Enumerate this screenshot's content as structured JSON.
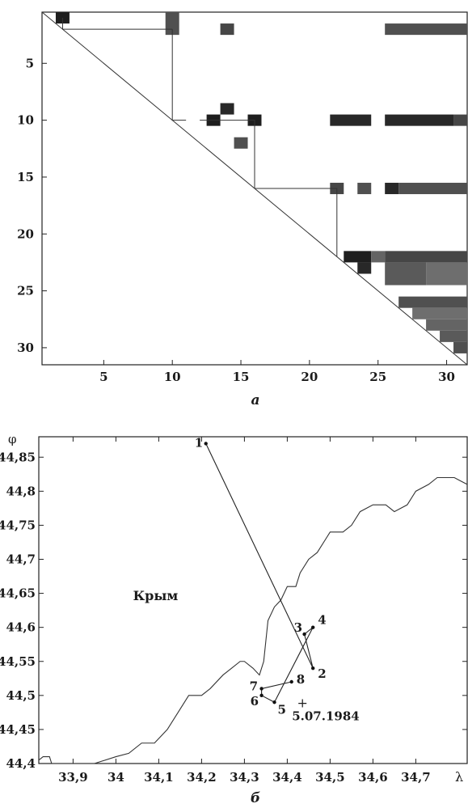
{
  "chart_data": [
    {
      "type": "heatmap",
      "caption": "а",
      "x_ticks": [
        "5",
        "10",
        "15",
        "20",
        "25",
        "30"
      ],
      "y_ticks": [
        "5",
        "10",
        "15",
        "20",
        "25",
        "30"
      ],
      "x_tick_values": [
        5,
        10,
        15,
        20,
        25,
        30
      ],
      "y_tick_values": [
        5,
        10,
        15,
        20,
        25,
        30
      ],
      "xlim": [
        0.5,
        31.5
      ],
      "ylim": [
        0.5,
        31.5
      ],
      "cells": [
        {
          "x0": 1.5,
          "x1": 2.5,
          "y0": 0.5,
          "y1": 1.5,
          "value": 0.95
        },
        {
          "x0": 9.5,
          "x1": 10.5,
          "y0": 0.5,
          "y1": 2.5,
          "value": 0.7
        },
        {
          "x0": 13.5,
          "x1": 14.5,
          "y0": 1.5,
          "y1": 2.5,
          "value": 0.75
        },
        {
          "x0": 25.5,
          "x1": 31.5,
          "y0": 1.5,
          "y1": 2.5,
          "value": 0.7
        },
        {
          "x0": 13.5,
          "x1": 14.5,
          "y0": 8.5,
          "y1": 9.5,
          "value": 0.9
        },
        {
          "x0": 12.5,
          "x1": 13.5,
          "y0": 9.5,
          "y1": 10.5,
          "value": 0.95
        },
        {
          "x0": 15.5,
          "x1": 16.5,
          "y0": 9.5,
          "y1": 10.5,
          "value": 0.95
        },
        {
          "x0": 21.5,
          "x1": 24.5,
          "y0": 9.5,
          "y1": 10.5,
          "value": 0.9
        },
        {
          "x0": 25.5,
          "x1": 30.5,
          "y0": 9.5,
          "y1": 10.5,
          "value": 0.9
        },
        {
          "x0": 30.5,
          "x1": 31.5,
          "y0": 9.5,
          "y1": 10.5,
          "value": 0.75
        },
        {
          "x0": 14.5,
          "x1": 15.5,
          "y0": 11.5,
          "y1": 12.5,
          "value": 0.7
        },
        {
          "x0": 21.5,
          "x1": 22.5,
          "y0": 15.5,
          "y1": 16.5,
          "value": 0.75
        },
        {
          "x0": 23.5,
          "x1": 24.5,
          "y0": 15.5,
          "y1": 16.5,
          "value": 0.7
        },
        {
          "x0": 25.5,
          "x1": 26.5,
          "y0": 15.5,
          "y1": 16.5,
          "value": 0.9
        },
        {
          "x0": 26.5,
          "x1": 31.5,
          "y0": 15.5,
          "y1": 16.5,
          "value": 0.7
        },
        {
          "x0": 22.5,
          "x1": 24.5,
          "y0": 21.5,
          "y1": 22.5,
          "value": 0.95
        },
        {
          "x0": 23.5,
          "x1": 24.5,
          "y0": 22.5,
          "y1": 23.5,
          "value": 0.9
        },
        {
          "x0": 24.5,
          "x1": 25.5,
          "y0": 21.5,
          "y1": 22.5,
          "value": 0.6
        },
        {
          "x0": 25.5,
          "x1": 31.5,
          "y0": 21.5,
          "y1": 22.5,
          "value": 0.75
        },
        {
          "x0": 25.5,
          "x1": 28.5,
          "y0": 22.5,
          "y1": 24.5,
          "value": 0.65
        },
        {
          "x0": 28.5,
          "x1": 31.5,
          "y0": 22.5,
          "y1": 24.5,
          "value": 0.55
        },
        {
          "x0": 26.5,
          "x1": 31.5,
          "y0": 25.5,
          "y1": 26.5,
          "value": 0.7
        },
        {
          "x0": 27.5,
          "x1": 31.5,
          "y0": 26.5,
          "y1": 27.5,
          "value": 0.55
        },
        {
          "x0": 28.5,
          "x1": 31.5,
          "y0": 27.5,
          "y1": 28.5,
          "value": 0.6
        },
        {
          "x0": 29.5,
          "x1": 31.5,
          "y0": 28.5,
          "y1": 29.5,
          "value": 0.65
        },
        {
          "x0": 30.5,
          "x1": 31.5,
          "y0": 29.5,
          "y1": 30.5,
          "value": 0.7
        }
      ],
      "tree_lines": [
        [
          [
            2,
            1
          ],
          [
            2,
            2
          ],
          [
            10,
            2
          ]
        ],
        [
          [
            10,
            2
          ],
          [
            10,
            10
          ],
          [
            11,
            10
          ]
        ],
        [
          [
            12,
            10
          ],
          [
            16,
            10
          ],
          [
            16,
            16
          ]
        ],
        [
          [
            16,
            16
          ],
          [
            22,
            16
          ],
          [
            22,
            22
          ]
        ]
      ]
    },
    {
      "type": "line",
      "caption": "б",
      "xlabel": "λ",
      "ylabel": "φ",
      "x_ticks": [
        "33,9",
        "34",
        "34,1",
        "34,2",
        "34,3",
        "34,4",
        "34,5",
        "34,6",
        "34,7"
      ],
      "x_tick_values": [
        33.9,
        34.0,
        34.1,
        34.2,
        34.3,
        34.4,
        34.5,
        34.6,
        34.7
      ],
      "y_ticks": [
        "44,4",
        "44,45",
        "44,5",
        "44,55",
        "44,6",
        "44,65",
        "44,7",
        "44,75",
        "44,8",
        "44,85"
      ],
      "y_tick_values": [
        44.4,
        44.45,
        44.5,
        44.55,
        44.6,
        44.65,
        44.7,
        44.75,
        44.8,
        44.85
      ],
      "xlim": [
        33.82,
        34.82
      ],
      "ylim": [
        44.4,
        44.88
      ],
      "region_label": "Крым",
      "region_label_pos": {
        "x": 34.04,
        "y": 44.64
      },
      "coastline": [
        [
          33.82,
          44.405
        ],
        [
          33.83,
          44.41
        ],
        [
          33.845,
          44.41
        ],
        [
          33.85,
          44.4
        ],
        [
          33.95,
          44.4
        ],
        [
          34.0,
          44.41
        ],
        [
          34.03,
          44.415
        ],
        [
          34.06,
          44.43
        ],
        [
          34.09,
          44.43
        ],
        [
          34.12,
          44.45
        ],
        [
          34.15,
          44.48
        ],
        [
          34.17,
          44.5
        ],
        [
          34.2,
          44.5
        ],
        [
          34.22,
          44.51
        ],
        [
          34.25,
          44.53
        ],
        [
          34.27,
          44.54
        ],
        [
          34.29,
          44.55
        ],
        [
          34.3,
          44.55
        ],
        [
          34.32,
          44.54
        ],
        [
          34.335,
          44.53
        ],
        [
          34.345,
          44.55
        ],
        [
          34.35,
          44.58
        ],
        [
          34.355,
          44.61
        ],
        [
          34.37,
          44.63
        ],
        [
          34.385,
          44.64
        ],
        [
          34.4,
          44.66
        ],
        [
          34.42,
          44.66
        ],
        [
          34.43,
          44.68
        ],
        [
          34.45,
          44.7
        ],
        [
          34.47,
          44.71
        ],
        [
          34.49,
          44.73
        ],
        [
          34.5,
          44.74
        ],
        [
          34.53,
          44.74
        ],
        [
          34.55,
          44.75
        ],
        [
          34.57,
          44.77
        ],
        [
          34.6,
          44.78
        ],
        [
          34.63,
          44.78
        ],
        [
          34.65,
          44.77
        ],
        [
          34.68,
          44.78
        ],
        [
          34.7,
          44.8
        ],
        [
          34.73,
          44.81
        ],
        [
          34.75,
          44.82
        ],
        [
          34.77,
          44.82
        ],
        [
          34.79,
          44.82
        ],
        [
          34.805,
          44.815
        ],
        [
          34.82,
          44.81
        ]
      ],
      "track": [
        {
          "label": "1",
          "x": 34.21,
          "y": 44.87
        },
        {
          "label": "2",
          "x": 34.46,
          "y": 44.54
        },
        {
          "label": "3",
          "x": 34.44,
          "y": 44.59
        },
        {
          "label": "4",
          "x": 34.46,
          "y": 44.6
        },
        {
          "label": "5",
          "x": 34.37,
          "y": 44.49
        },
        {
          "label": "6",
          "x": 34.34,
          "y": 44.5
        },
        {
          "label": "7",
          "x": 34.34,
          "y": 44.51
        },
        {
          "label": "8",
          "x": 34.41,
          "y": 44.52
        }
      ],
      "epicenter": {
        "marker": "+",
        "x": 34.46,
        "y": 44.49,
        "label": "5.07.1984"
      }
    }
  ]
}
